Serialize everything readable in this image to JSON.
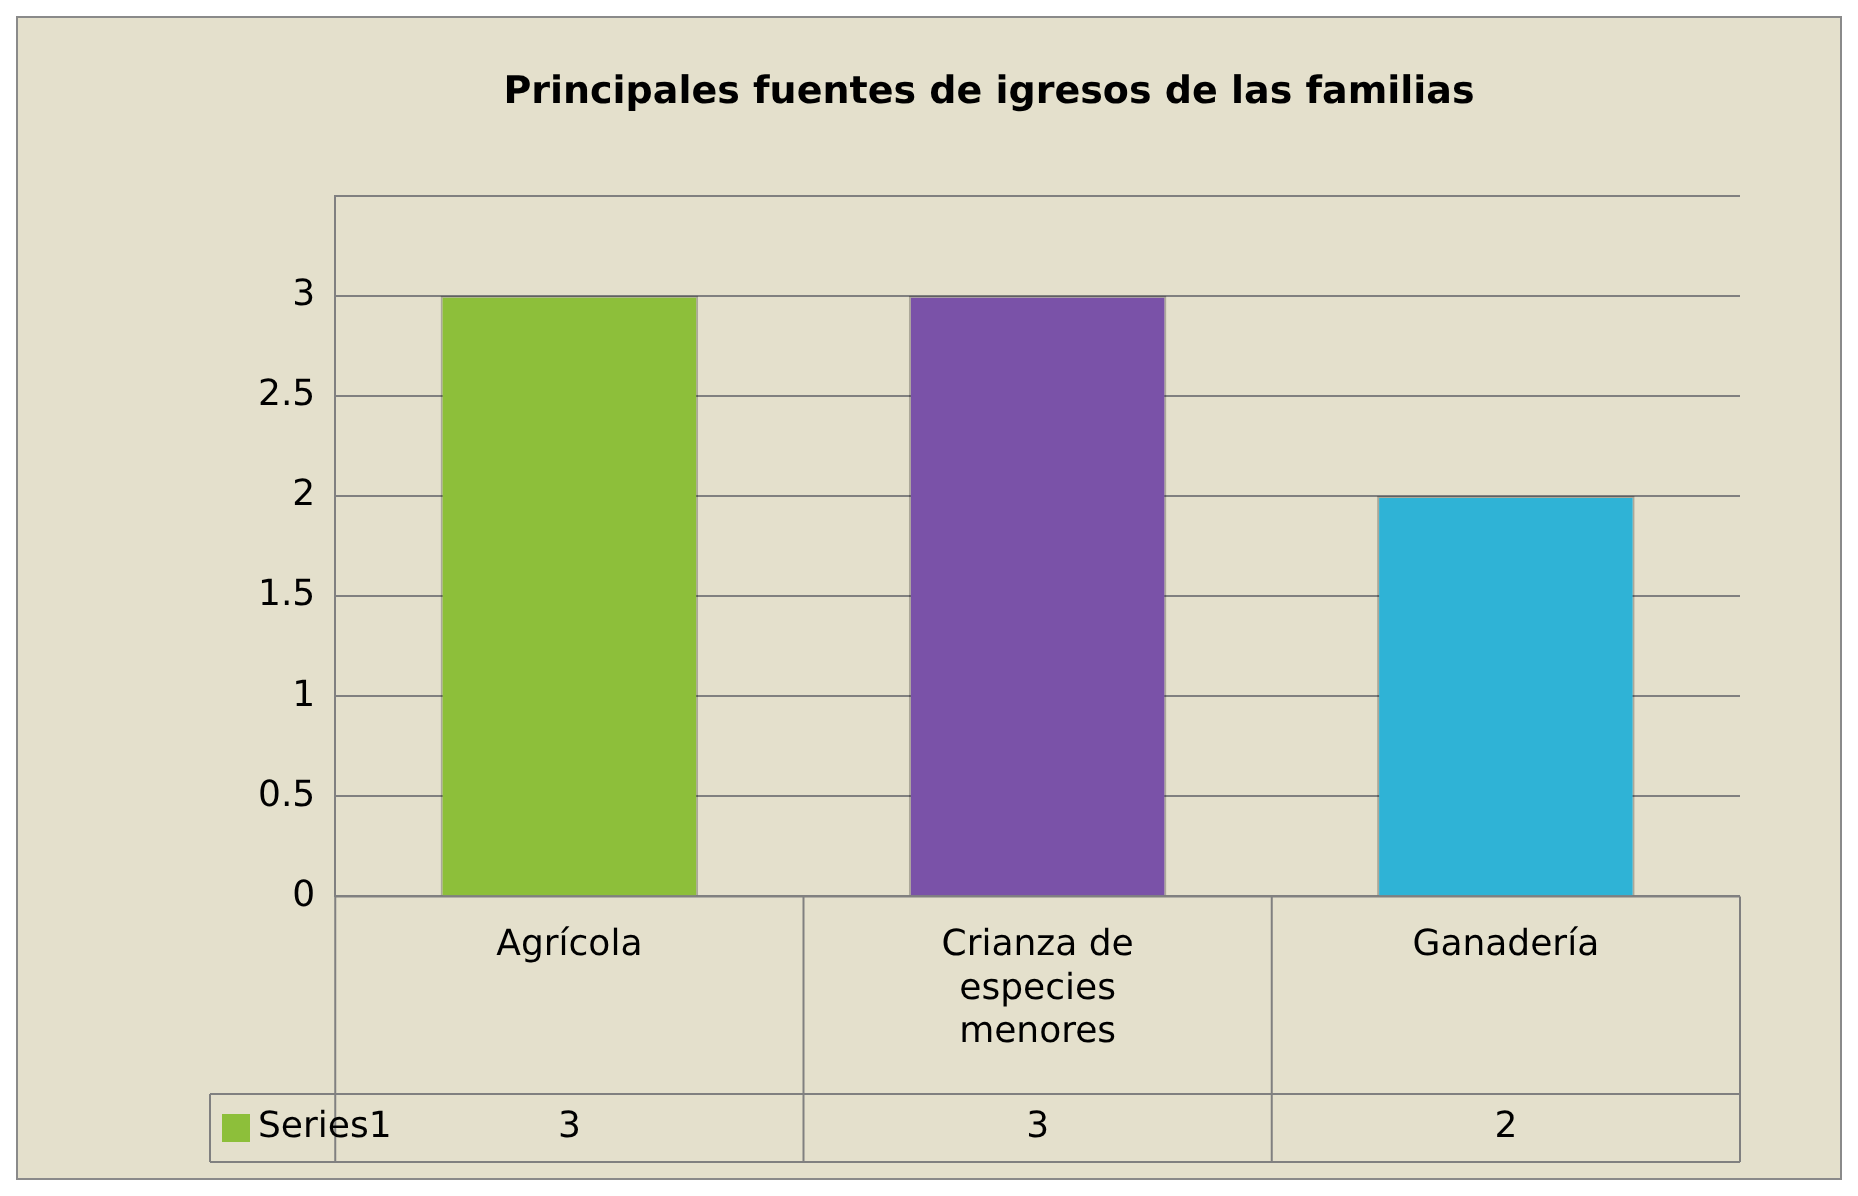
{
  "chart_data": {
    "type": "bar",
    "title": "Principales fuentes de igresos de las familias",
    "categories": [
      "Agrícola",
      "Crianza de especies menores",
      "Ganadería"
    ],
    "series": [
      {
        "name": "Series1",
        "color": "#8dbf3a",
        "colors": [
          "#8dbf3a",
          "#7a52a8",
          "#2fb3d6"
        ],
        "values": [
          3,
          3,
          2
        ]
      }
    ],
    "ylim": [
      0,
      3.5
    ],
    "yticks": [
      0,
      0.5,
      1,
      1.5,
      2,
      2.5,
      3,
      {
        "value": 3.5,
        "label": null
      }
    ],
    "grid": "y",
    "legend": "bottom",
    "data_labels": true
  }
}
